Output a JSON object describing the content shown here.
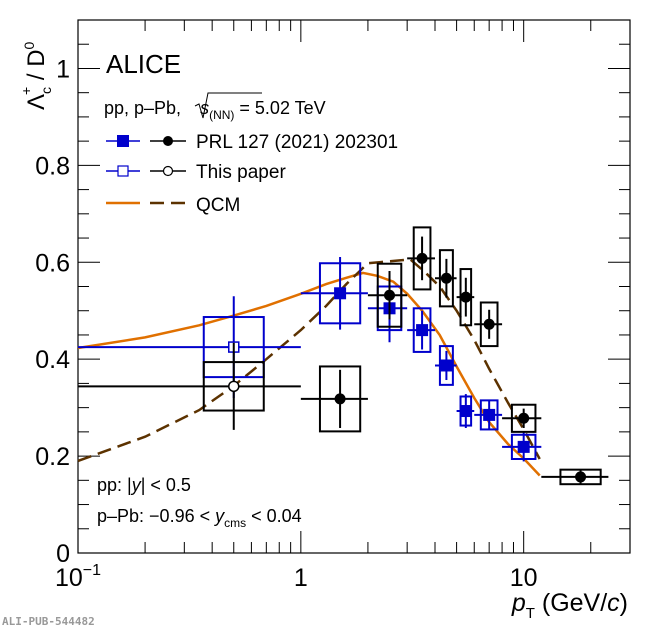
{
  "chart_data": {
    "type": "scatter",
    "title": "",
    "experiment_label": "ALICE",
    "system_label": {
      "prefix": "pp,  p–Pb, ",
      "sqrt": "s",
      "sub": "(NN)",
      "suffix": " = 5.02 TeV"
    },
    "xlabel": {
      "var": "p",
      "sub": "T",
      "unit": " (GeV/",
      "unit_var": "c",
      "unit_end": ")"
    },
    "ylabel": {
      "main": "Λ",
      "sub": "c",
      "sup": "+",
      "mid": " / D",
      "sup2": "0"
    },
    "xscale": "log",
    "xlim": [
      0.1,
      30
    ],
    "ylim": [
      0,
      1.1
    ],
    "x_tick_labels": [
      {
        "base": "10",
        "exp": "−1",
        "value": 0.1
      },
      {
        "base": "1",
        "exp": "",
        "value": 1
      },
      {
        "base": "10",
        "exp": "",
        "value": 10
      }
    ],
    "y_tick_labels": [
      "0",
      "0.2",
      "0.4",
      "0.6",
      "0.8",
      "1"
    ],
    "y_ticks": [
      0,
      0.2,
      0.4,
      0.6,
      0.8,
      1.0
    ],
    "legend": {
      "placement": "top-left",
      "entries": [
        {
          "label": "PRL 127 (2021) 202301"
        },
        {
          "label": "This paper"
        },
        {
          "label": "QCM"
        }
      ]
    },
    "annotations": {
      "pp_rapidity": {
        "prefix": "pp: |",
        "var": "y",
        "suffix": "| < 0.5"
      },
      "ppb_rapidity": {
        "prefix": "p–Pb: −0.96 < ",
        "var": "y",
        "sub": "cms",
        "suffix": " < 0.04"
      }
    },
    "colors": {
      "pp": "#0000cc",
      "ppb": "#000000",
      "qcm_pp": "#e07000",
      "qcm_ppb": "#5c3200"
    },
    "series": [
      {
        "name": "pp PRL 127 (2021) 202301",
        "marker": "filled-square",
        "color": "#0000cc",
        "points": [
          {
            "x": 1.5,
            "xlo": 1,
            "xhi": 2,
            "y": 0.536,
            "stat": 0.075,
            "syst": 0.062
          },
          {
            "x": 2.5,
            "xlo": 2,
            "xhi": 3,
            "y": 0.505,
            "stat": 0.07,
            "syst": 0.045
          },
          {
            "x": 3.5,
            "xlo": 3,
            "xhi": 4,
            "y": 0.46,
            "stat": 0.04,
            "syst": 0.045
          },
          {
            "x": 4.5,
            "xlo": 4,
            "xhi": 5,
            "y": 0.387,
            "stat": 0.03,
            "syst": 0.04
          },
          {
            "x": 5.5,
            "xlo": 5,
            "xhi": 6,
            "y": 0.293,
            "stat": 0.035,
            "syst": 0.03
          },
          {
            "x": 7,
            "xlo": 6,
            "xhi": 8,
            "y": 0.285,
            "stat": 0.03,
            "syst": 0.03
          },
          {
            "x": 10,
            "xlo": 8,
            "xhi": 12,
            "y": 0.219,
            "stat": 0.03,
            "syst": 0.025
          }
        ]
      },
      {
        "name": "p-Pb PRL 127 (2021) 202301",
        "marker": "filled-circle",
        "color": "#000000",
        "points": [
          {
            "x": 1.5,
            "xlo": 1,
            "xhi": 2,
            "y": 0.318,
            "stat": 0.06,
            "syst": 0.067
          },
          {
            "x": 2.5,
            "xlo": 2,
            "xhi": 3,
            "y": 0.532,
            "stat": 0.05,
            "syst": 0.065
          },
          {
            "x": 3.5,
            "xlo": 3,
            "xhi": 4,
            "y": 0.608,
            "stat": 0.045,
            "syst": 0.064
          },
          {
            "x": 4.5,
            "xlo": 4,
            "xhi": 5,
            "y": 0.567,
            "stat": 0.04,
            "syst": 0.058
          },
          {
            "x": 5.5,
            "xlo": 5,
            "xhi": 6,
            "y": 0.528,
            "stat": 0.04,
            "syst": 0.058
          },
          {
            "x": 7,
            "xlo": 6,
            "xhi": 8,
            "y": 0.472,
            "stat": 0.03,
            "syst": 0.045
          },
          {
            "x": 10,
            "xlo": 8,
            "xhi": 12,
            "y": 0.278,
            "stat": 0.02,
            "syst": 0.028
          },
          {
            "x": 18,
            "xlo": 12,
            "xhi": 24,
            "y": 0.157,
            "stat": 0.015,
            "syst": 0.015
          }
        ]
      },
      {
        "name": "pp This paper",
        "marker": "open-square",
        "color": "#0000cc",
        "points": [
          {
            "x": 0.5,
            "xlo": 0,
            "xhi": 1,
            "y": 0.425,
            "stat": 0.105,
            "syst": 0.062
          }
        ]
      },
      {
        "name": "p-Pb This paper",
        "marker": "open-circle",
        "color": "#000000",
        "points": [
          {
            "x": 0.5,
            "xlo": 0,
            "xhi": 1,
            "y": 0.344,
            "stat": 0.09,
            "syst": 0.05
          }
        ]
      }
    ],
    "curves": [
      {
        "name": "QCM pp",
        "style": "solid",
        "color": "#e07000",
        "x": [
          0.1,
          0.2,
          0.35,
          0.5,
          0.7,
          1.0,
          1.3,
          1.6,
          1.9,
          2.2,
          2.6,
          3.0,
          3.5,
          4.2,
          5.0,
          6.0,
          7.0,
          8.5,
          10,
          11.8
        ],
        "y": [
          0.423,
          0.445,
          0.47,
          0.49,
          0.51,
          0.535,
          0.555,
          0.568,
          0.578,
          0.572,
          0.56,
          0.535,
          0.5,
          0.45,
          0.385,
          0.32,
          0.27,
          0.225,
          0.195,
          0.16
        ]
      },
      {
        "name": "QCM p-Pb",
        "style": "dashed",
        "color": "#5c3200",
        "x": [
          0.1,
          0.2,
          0.35,
          0.5,
          0.7,
          1.0,
          1.3,
          1.6,
          2.0,
          2.5,
          3.1,
          3.6,
          4.2,
          5.0,
          6.0,
          7.0,
          8.5,
          10,
          11.8
        ],
        "y": [
          0.19,
          0.24,
          0.295,
          0.345,
          0.4,
          0.46,
          0.51,
          0.555,
          0.598,
          0.602,
          0.606,
          0.58,
          0.55,
          0.5,
          0.44,
          0.38,
          0.31,
          0.255,
          0.194
        ]
      }
    ]
  },
  "footer": {
    "pub_id": "ALI-PUB-544482"
  }
}
